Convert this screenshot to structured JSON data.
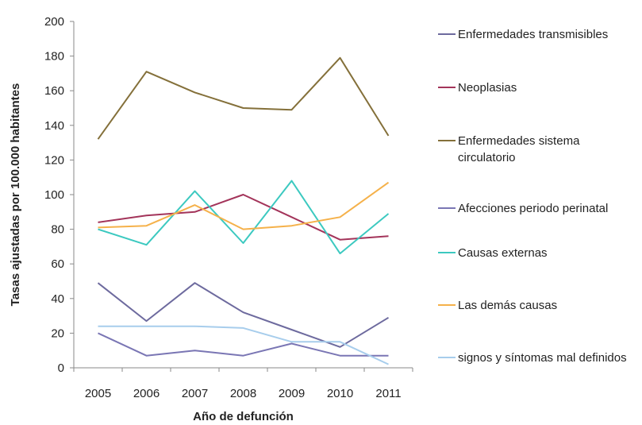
{
  "chart_data": {
    "type": "line",
    "xlabel": "Año de defunción",
    "ylabel": "Tasas ajustadas por 100.000 habitantes",
    "ylim": [
      0,
      200
    ],
    "yticks": [
      0,
      20,
      40,
      60,
      80,
      100,
      120,
      140,
      160,
      180,
      200
    ],
    "categories": [
      "2005",
      "2006",
      "2007",
      "2008",
      "2009",
      "2010",
      "2011"
    ],
    "legend_position": "right",
    "grid": false,
    "series": [
      {
        "name": "Enfermedades transmisibles",
        "color": "#6d6a9e",
        "values": [
          49,
          27,
          49,
          32,
          22,
          12,
          29
        ]
      },
      {
        "name": "Neoplasias",
        "color": "#a3345a",
        "values": [
          84,
          88,
          90,
          100,
          87,
          74,
          76
        ]
      },
      {
        "name": "Enfermedades sistema circulatorio",
        "color": "#84703a",
        "values": [
          132,
          171,
          159,
          150,
          149,
          179,
          134
        ]
      },
      {
        "name": "Afecciones periodo perinatal",
        "color": "#7a76b4",
        "values": [
          20,
          7,
          10,
          7,
          14,
          7,
          7
        ]
      },
      {
        "name": "Causas externas",
        "color": "#3cc9c0",
        "values": [
          80,
          71,
          102,
          72,
          108,
          66,
          89
        ]
      },
      {
        "name": "Las demás causas",
        "color": "#f5b14a",
        "values": [
          81,
          82,
          94,
          80,
          82,
          87,
          107
        ]
      },
      {
        "name": "signos y síntomas mal definidos",
        "color": "#a7cdec",
        "values": [
          24,
          24,
          24,
          23,
          15,
          15,
          2
        ]
      }
    ]
  }
}
